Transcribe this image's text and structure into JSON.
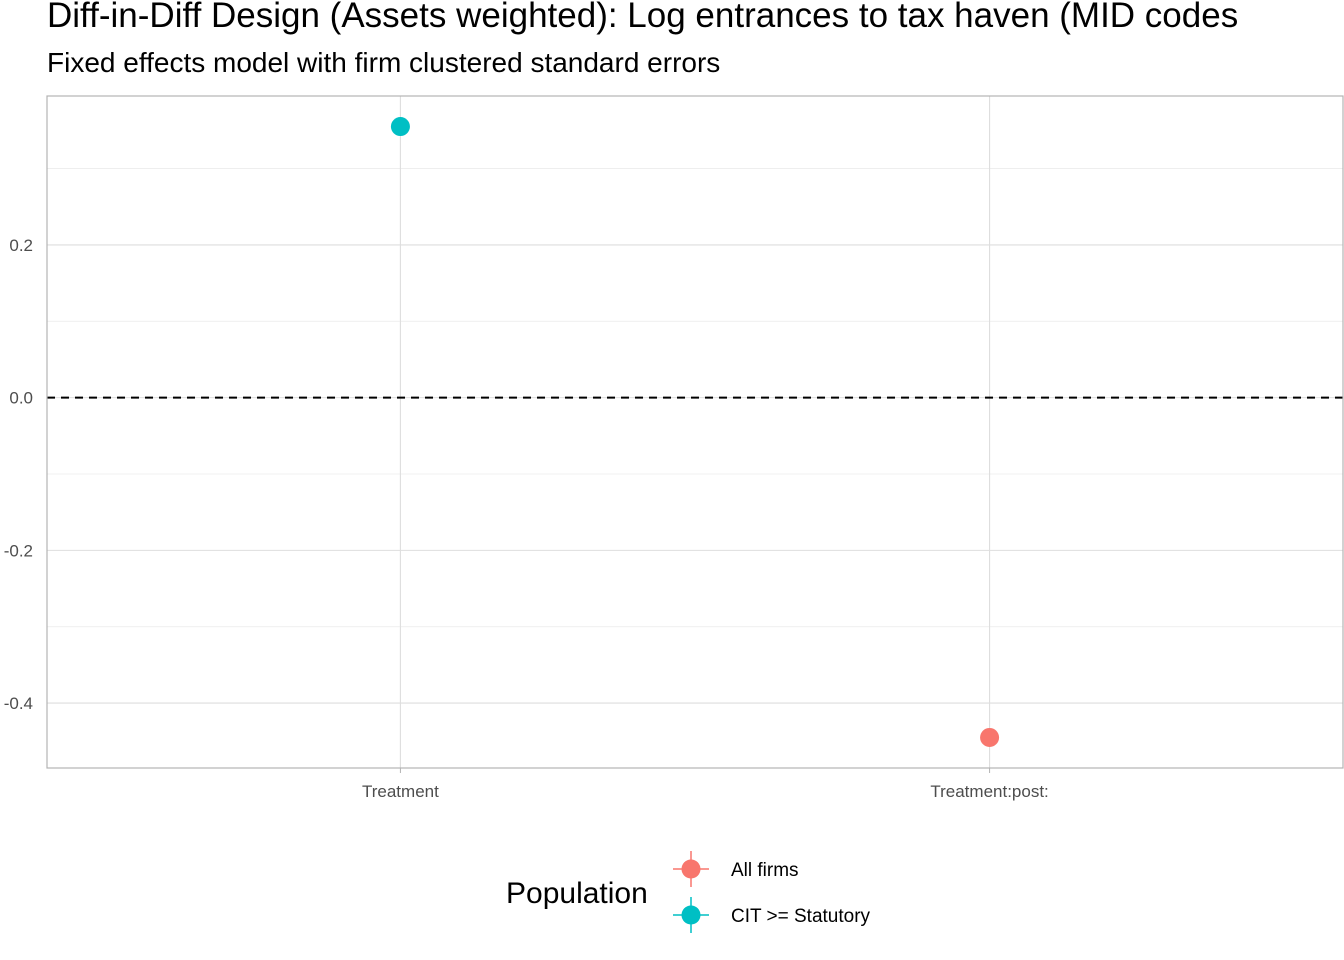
{
  "chart_data": {
    "type": "scatter",
    "title": "Diff-in-Diff Design (Assets weighted): Log entrances to tax haven (MID codes",
    "subtitle": "Fixed effects model with firm clustered standard errors",
    "xlabel": "",
    "ylabel": "",
    "categories": [
      "Treatment",
      "Treatment:post:"
    ],
    "yticks": [
      -0.4,
      -0.2,
      0.0,
      0.2
    ],
    "ytick_labels": [
      "-0.4",
      "-0.2",
      "0.0",
      "0.2"
    ],
    "ylim": [
      -0.485,
      0.395
    ],
    "reference_line": {
      "y": 0.0,
      "style": "dashed"
    },
    "grid": true,
    "legend": {
      "title": "Population",
      "position": "bottom"
    },
    "series": [
      {
        "name": "All firms",
        "color": "#F8766D",
        "points": [
          {
            "x": "Treatment:post:",
            "y": -0.445
          }
        ]
      },
      {
        "name": "CIT >= Statutory",
        "color": "#00BFC4",
        "points": [
          {
            "x": "Treatment",
            "y": 0.355
          }
        ]
      }
    ]
  }
}
